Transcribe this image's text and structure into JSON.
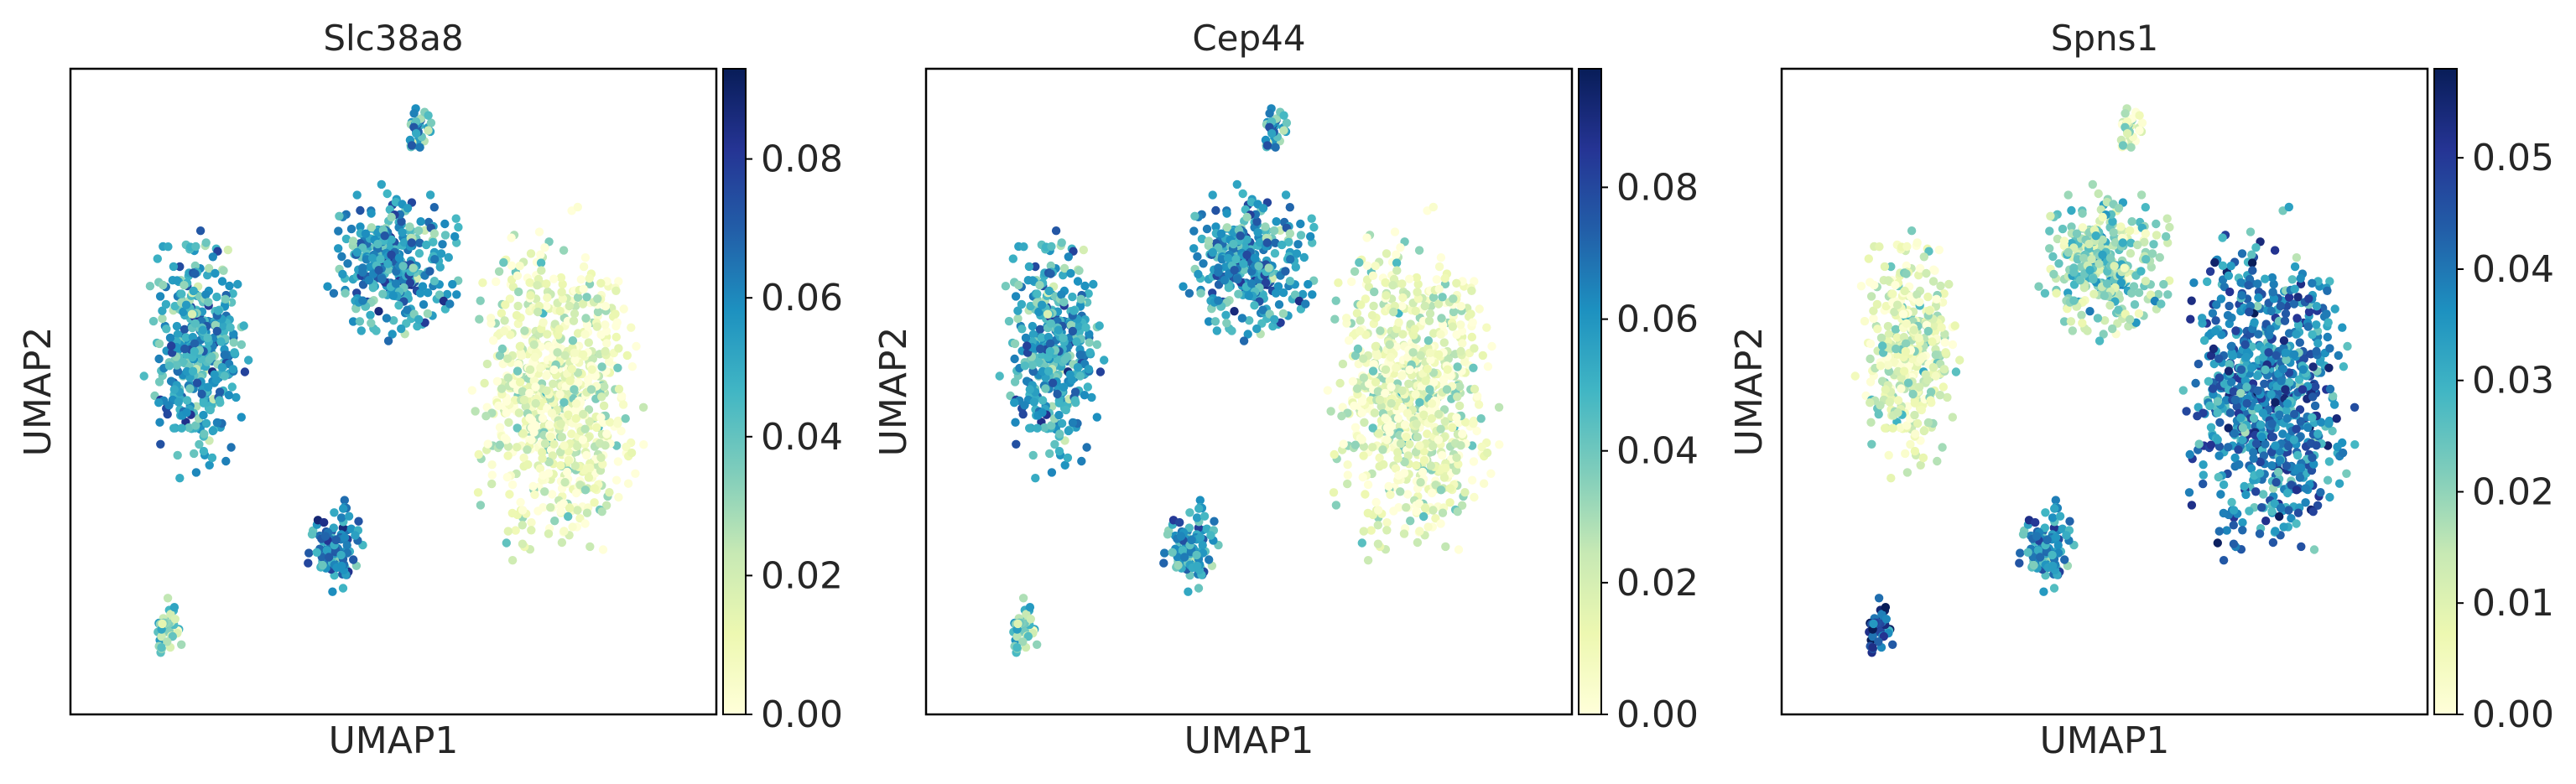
{
  "chart_data": [
    {
      "type": "scatter",
      "title": "Slc38a8",
      "xlabel": "UMAP1",
      "ylabel": "UMAP2",
      "colormap": "YlGnBu",
      "color_range": [
        0.0,
        0.093
      ],
      "colorbar_ticks": [
        0.0,
        0.02,
        0.04,
        0.06,
        0.08
      ],
      "colorbar_tick_labels": [
        "0.00",
        "0.02",
        "0.04",
        "0.06",
        "0.08"
      ],
      "grid": false,
      "legend": "none",
      "clusters": [
        {
          "region": "left-tall",
          "mean_value": 0.052
        },
        {
          "region": "upper-middle",
          "mean_value": 0.055
        },
        {
          "region": "top-small",
          "mean_value": 0.05
        },
        {
          "region": "right-large",
          "mean_value": 0.01
        },
        {
          "region": "lower-middle",
          "mean_value": 0.06
        },
        {
          "region": "bottom-left",
          "mean_value": 0.03
        }
      ]
    },
    {
      "type": "scatter",
      "title": "Cep44",
      "xlabel": "UMAP1",
      "ylabel": "UMAP2",
      "colormap": "YlGnBu",
      "color_range": [
        0.0,
        0.098
      ],
      "colorbar_ticks": [
        0.0,
        0.02,
        0.04,
        0.06,
        0.08
      ],
      "colorbar_tick_labels": [
        "0.00",
        "0.02",
        "0.04",
        "0.06",
        "0.08"
      ],
      "grid": false,
      "legend": "none",
      "clusters": [
        {
          "region": "left-tall",
          "mean_value": 0.055
        },
        {
          "region": "upper-middle",
          "mean_value": 0.058
        },
        {
          "region": "top-small",
          "mean_value": 0.055
        },
        {
          "region": "right-large",
          "mean_value": 0.012
        },
        {
          "region": "lower-middle",
          "mean_value": 0.055
        },
        {
          "region": "bottom-left",
          "mean_value": 0.035
        }
      ]
    },
    {
      "type": "scatter",
      "title": "Spns1",
      "xlabel": "UMAP1",
      "ylabel": "UMAP2",
      "colormap": "YlGnBu",
      "color_range": [
        0.0,
        0.058
      ],
      "colorbar_ticks": [
        0.0,
        0.01,
        0.02,
        0.03,
        0.04,
        0.05
      ],
      "colorbar_tick_labels": [
        "0.00",
        "0.01",
        "0.02",
        "0.03",
        "0.04",
        "0.05"
      ],
      "grid": false,
      "legend": "none",
      "clusters": [
        {
          "region": "left-tall",
          "mean_value": 0.01
        },
        {
          "region": "upper-middle",
          "mean_value": 0.02
        },
        {
          "region": "top-small",
          "mean_value": 0.01
        },
        {
          "region": "right-large",
          "mean_value": 0.038
        },
        {
          "region": "lower-middle",
          "mean_value": 0.035
        },
        {
          "region": "bottom-left",
          "mean_value": 0.045
        }
      ]
    }
  ]
}
